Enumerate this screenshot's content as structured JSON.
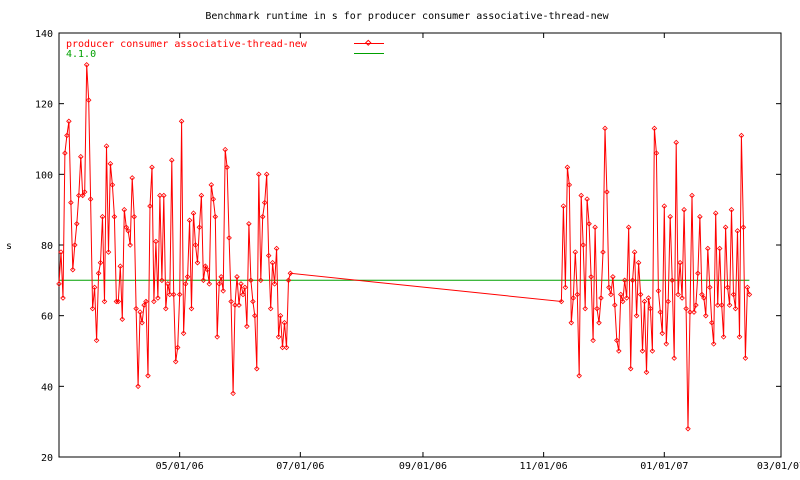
{
  "chart_data": {
    "type": "line",
    "title": "Benchmark runtime in s for producer consumer associative-thread-new",
    "xlabel": "",
    "ylabel": "s",
    "ylim": [
      20,
      140
    ],
    "yticks": [
      20,
      40,
      60,
      80,
      100,
      120,
      140
    ],
    "xlim": [
      "2006-03-01",
      "2007-03-01"
    ],
    "xticks": [
      "2006-05-01",
      "2006-07-01",
      "2006-09-01",
      "2006-11-01",
      "2007-01-01",
      "2007-03-01"
    ],
    "xtick_labels": [
      "05/01/06",
      "07/01/06",
      "09/01/06",
      "11/01/06",
      "01/01/07",
      "03/01/07"
    ],
    "grid": false,
    "legend_position": "top-left",
    "series": [
      {
        "name": "producer consumer associative-thread-new",
        "color": "#ff0000",
        "marker": "diamond",
        "points": [
          [
            "2006-03-01",
            69
          ],
          [
            "2006-03-02",
            78
          ],
          [
            "2006-03-03",
            65
          ],
          [
            "2006-03-04",
            106
          ],
          [
            "2006-03-05",
            111
          ],
          [
            "2006-03-06",
            115
          ],
          [
            "2006-03-07",
            92
          ],
          [
            "2006-03-08",
            73
          ],
          [
            "2006-03-09",
            80
          ],
          [
            "2006-03-10",
            86
          ],
          [
            "2006-03-11",
            94
          ],
          [
            "2006-03-12",
            105
          ],
          [
            "2006-03-13",
            94
          ],
          [
            "2006-03-14",
            95
          ],
          [
            "2006-03-15",
            131
          ],
          [
            "2006-03-16",
            121
          ],
          [
            "2006-03-17",
            93
          ],
          [
            "2006-03-18",
            62
          ],
          [
            "2006-03-19",
            68
          ],
          [
            "2006-03-20",
            53
          ],
          [
            "2006-03-21",
            72
          ],
          [
            "2006-03-22",
            75
          ],
          [
            "2006-03-23",
            88
          ],
          [
            "2006-03-24",
            64
          ],
          [
            "2006-03-25",
            108
          ],
          [
            "2006-03-26",
            78
          ],
          [
            "2006-03-27",
            103
          ],
          [
            "2006-03-28",
            97
          ],
          [
            "2006-03-29",
            88
          ],
          [
            "2006-03-30",
            64
          ],
          [
            "2006-03-31",
            64
          ],
          [
            "2006-04-01",
            74
          ],
          [
            "2006-04-02",
            59
          ],
          [
            "2006-04-03",
            90
          ],
          [
            "2006-04-04",
            85
          ],
          [
            "2006-04-05",
            84
          ],
          [
            "2006-04-06",
            80
          ],
          [
            "2006-04-07",
            99
          ],
          [
            "2006-04-08",
            88
          ],
          [
            "2006-04-09",
            62
          ],
          [
            "2006-04-10",
            40
          ],
          [
            "2006-04-11",
            61
          ],
          [
            "2006-04-12",
            58
          ],
          [
            "2006-04-13",
            63
          ],
          [
            "2006-04-14",
            64
          ],
          [
            "2006-04-15",
            43
          ],
          [
            "2006-04-16",
            91
          ],
          [
            "2006-04-17",
            102
          ],
          [
            "2006-04-18",
            64
          ],
          [
            "2006-04-19",
            81
          ],
          [
            "2006-04-20",
            65
          ],
          [
            "2006-04-21",
            94
          ],
          [
            "2006-04-22",
            70
          ],
          [
            "2006-04-23",
            94
          ],
          [
            "2006-04-24",
            62
          ],
          [
            "2006-04-25",
            69
          ],
          [
            "2006-04-26",
            66
          ],
          [
            "2006-04-27",
            104
          ],
          [
            "2006-04-28",
            66
          ],
          [
            "2006-04-29",
            47
          ],
          [
            "2006-04-30",
            51
          ],
          [
            "2006-05-01",
            66
          ],
          [
            "2006-05-02",
            115
          ],
          [
            "2006-05-03",
            55
          ],
          [
            "2006-05-04",
            69
          ],
          [
            "2006-05-05",
            71
          ],
          [
            "2006-05-06",
            87
          ],
          [
            "2006-05-07",
            62
          ],
          [
            "2006-05-08",
            89
          ],
          [
            "2006-05-09",
            80
          ],
          [
            "2006-05-10",
            75
          ],
          [
            "2006-05-11",
            85
          ],
          [
            "2006-05-12",
            94
          ],
          [
            "2006-05-13",
            70
          ],
          [
            "2006-05-14",
            74
          ],
          [
            "2006-05-15",
            73
          ],
          [
            "2006-05-16",
            69
          ],
          [
            "2006-05-17",
            97
          ],
          [
            "2006-05-18",
            93
          ],
          [
            "2006-05-19",
            88
          ],
          [
            "2006-05-20",
            54
          ],
          [
            "2006-05-21",
            69
          ],
          [
            "2006-05-22",
            71
          ],
          [
            "2006-05-23",
            67
          ],
          [
            "2006-05-24",
            107
          ],
          [
            "2006-05-25",
            102
          ],
          [
            "2006-05-26",
            82
          ],
          [
            "2006-05-27",
            64
          ],
          [
            "2006-05-28",
            38
          ],
          [
            "2006-05-29",
            63
          ],
          [
            "2006-05-30",
            71
          ],
          [
            "2006-05-31",
            63
          ],
          [
            "2006-06-01",
            69
          ],
          [
            "2006-06-02",
            66
          ],
          [
            "2006-06-03",
            68
          ],
          [
            "2006-06-04",
            57
          ],
          [
            "2006-06-05",
            86
          ],
          [
            "2006-06-06",
            70
          ],
          [
            "2006-06-07",
            64
          ],
          [
            "2006-06-08",
            60
          ],
          [
            "2006-06-09",
            45
          ],
          [
            "2006-06-10",
            100
          ],
          [
            "2006-06-11",
            70
          ],
          [
            "2006-06-12",
            88
          ],
          [
            "2006-06-13",
            92
          ],
          [
            "2006-06-14",
            100
          ],
          [
            "2006-06-15",
            77
          ],
          [
            "2006-06-16",
            62
          ],
          [
            "2006-06-17",
            75
          ],
          [
            "2006-06-18",
            69
          ],
          [
            "2006-06-19",
            79
          ],
          [
            "2006-06-20",
            54
          ],
          [
            "2006-06-21",
            60
          ],
          [
            "2006-06-22",
            51
          ],
          [
            "2006-06-23",
            58
          ],
          [
            "2006-06-24",
            51
          ],
          [
            "2006-06-25",
            70
          ],
          [
            "2006-06-26",
            72
          ],
          [
            "2006-11-10",
            64
          ],
          [
            "2006-11-11",
            91
          ],
          [
            "2006-11-12",
            68
          ],
          [
            "2006-11-13",
            102
          ],
          [
            "2006-11-14",
            97
          ],
          [
            "2006-11-15",
            58
          ],
          [
            "2006-11-16",
            65
          ],
          [
            "2006-11-17",
            78
          ],
          [
            "2006-11-18",
            66
          ],
          [
            "2006-11-19",
            43
          ],
          [
            "2006-11-20",
            94
          ],
          [
            "2006-11-21",
            80
          ],
          [
            "2006-11-22",
            62
          ],
          [
            "2006-11-23",
            93
          ],
          [
            "2006-11-24",
            86
          ],
          [
            "2006-11-25",
            71
          ],
          [
            "2006-11-26",
            53
          ],
          [
            "2006-11-27",
            85
          ],
          [
            "2006-11-28",
            62
          ],
          [
            "2006-11-29",
            58
          ],
          [
            "2006-11-30",
            65
          ],
          [
            "2006-12-01",
            78
          ],
          [
            "2006-12-02",
            113
          ],
          [
            "2006-12-03",
            95
          ],
          [
            "2006-12-04",
            68
          ],
          [
            "2006-12-05",
            66
          ],
          [
            "2006-12-06",
            71
          ],
          [
            "2006-12-07",
            63
          ],
          [
            "2006-12-08",
            53
          ],
          [
            "2006-12-09",
            50
          ],
          [
            "2006-12-10",
            66
          ],
          [
            "2006-12-11",
            64
          ],
          [
            "2006-12-12",
            70
          ],
          [
            "2006-12-13",
            65
          ],
          [
            "2006-12-14",
            85
          ],
          [
            "2006-12-15",
            45
          ],
          [
            "2006-12-16",
            70
          ],
          [
            "2006-12-17",
            78
          ],
          [
            "2006-12-18",
            60
          ],
          [
            "2006-12-19",
            75
          ],
          [
            "2006-12-20",
            66
          ],
          [
            "2006-12-21",
            50
          ],
          [
            "2006-12-22",
            64
          ],
          [
            "2006-12-23",
            44
          ],
          [
            "2006-12-24",
            65
          ],
          [
            "2006-12-25",
            62
          ],
          [
            "2006-12-26",
            50
          ],
          [
            "2006-12-27",
            113
          ],
          [
            "2006-12-28",
            106
          ],
          [
            "2006-12-29",
            67
          ],
          [
            "2006-12-30",
            61
          ],
          [
            "2006-12-31",
            55
          ],
          [
            "2007-01-01",
            91
          ],
          [
            "2007-01-02",
            52
          ],
          [
            "2007-01-03",
            64
          ],
          [
            "2007-01-04",
            88
          ],
          [
            "2007-01-05",
            70
          ],
          [
            "2007-01-06",
            48
          ],
          [
            "2007-01-07",
            109
          ],
          [
            "2007-01-08",
            66
          ],
          [
            "2007-01-09",
            75
          ],
          [
            "2007-01-10",
            65
          ],
          [
            "2007-01-11",
            90
          ],
          [
            "2007-01-12",
            62
          ],
          [
            "2007-01-13",
            28
          ],
          [
            "2007-01-14",
            61
          ],
          [
            "2007-01-15",
            94
          ],
          [
            "2007-01-16",
            61
          ],
          [
            "2007-01-17",
            63
          ],
          [
            "2007-01-18",
            72
          ],
          [
            "2007-01-19",
            88
          ],
          [
            "2007-01-20",
            66
          ],
          [
            "2007-01-21",
            65
          ],
          [
            "2007-01-22",
            60
          ],
          [
            "2007-01-23",
            79
          ],
          [
            "2007-01-24",
            68
          ],
          [
            "2007-01-25",
            58
          ],
          [
            "2007-01-26",
            52
          ],
          [
            "2007-01-27",
            89
          ],
          [
            "2007-01-28",
            63
          ],
          [
            "2007-01-29",
            79
          ],
          [
            "2007-01-30",
            63
          ],
          [
            "2007-01-31",
            54
          ],
          [
            "2007-02-01",
            85
          ],
          [
            "2007-02-02",
            68
          ],
          [
            "2007-02-03",
            63
          ],
          [
            "2007-02-04",
            90
          ],
          [
            "2007-02-05",
            66
          ],
          [
            "2007-02-06",
            62
          ],
          [
            "2007-02-07",
            84
          ],
          [
            "2007-02-08",
            54
          ],
          [
            "2007-02-09",
            111
          ],
          [
            "2007-02-10",
            85
          ],
          [
            "2007-02-11",
            48
          ],
          [
            "2007-02-12",
            68
          ],
          [
            "2007-02-13",
            66
          ]
        ]
      },
      {
        "name": "4.1.0",
        "color": "#00a000",
        "marker": "none",
        "points": [
          [
            "2006-03-01",
            70
          ],
          [
            "2007-02-13",
            70
          ]
        ]
      }
    ]
  }
}
